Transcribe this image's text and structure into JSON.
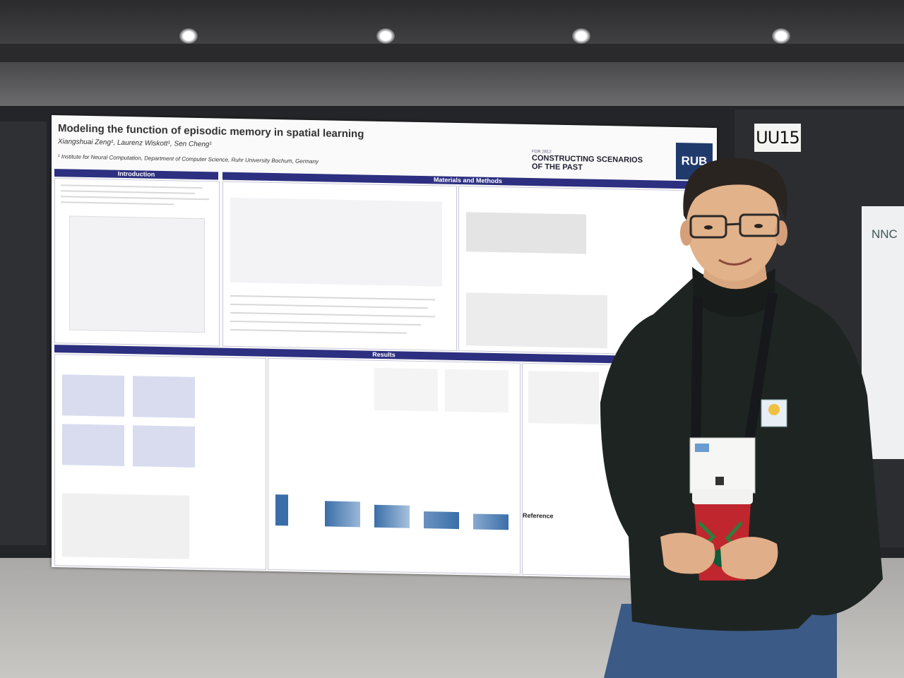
{
  "poster": {
    "title": "Modeling the function of episodic memory in spatial learning",
    "authors": "Xiangshuai Zeng¹, Laurenz Wiskott¹, Sen Cheng¹",
    "affiliation": "¹ Institute for Neural Computation, Department of Computer Science, Ruhr University Bochum, Germany",
    "conference_year": "FOR 2812",
    "conference_line1": "CONSTRUCTING SCENARIOS",
    "conference_line2": "OF THE PAST",
    "logo": "RUB",
    "sections": {
      "introduction": "Introduction",
      "materials": "Materials and Methods",
      "results": "Results",
      "reference": "Reference"
    }
  },
  "booth_number": "UU15",
  "neighbor_poster_logo": "NNC",
  "colors": {
    "section_bar": "#2d2f80",
    "rub_blue": "#213a6c",
    "sweater": "#1e2421",
    "cup_red": "#c0262d"
  }
}
